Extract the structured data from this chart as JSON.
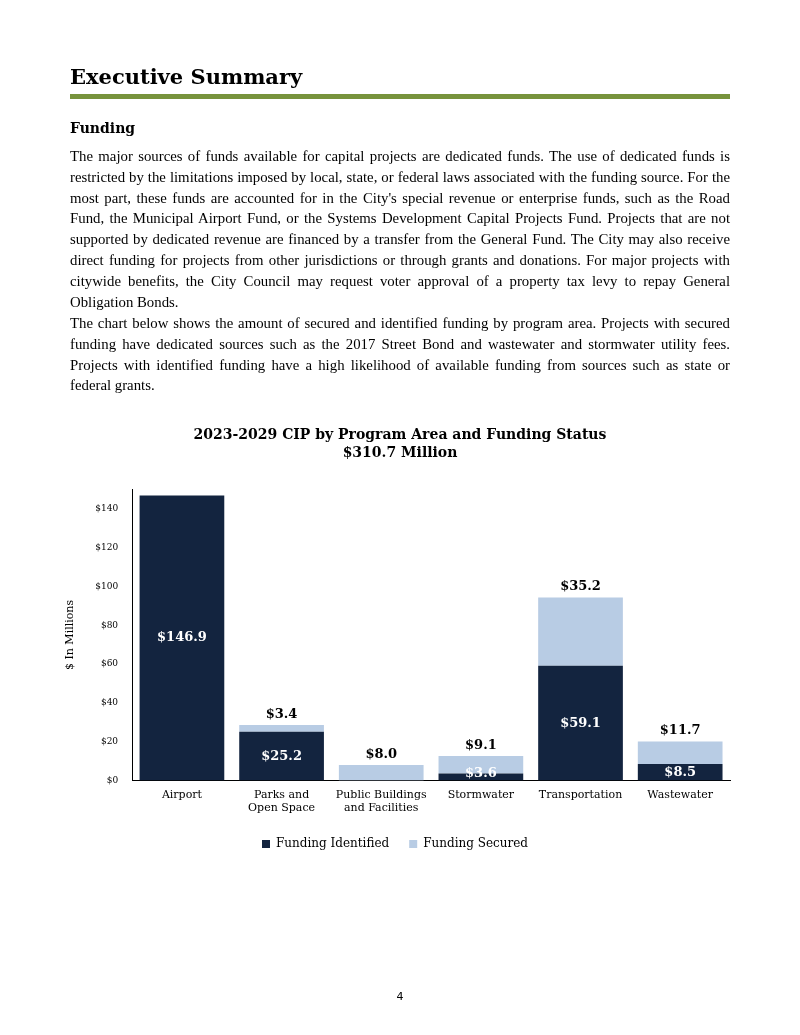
{
  "chart_data": {
    "type": "bar",
    "title": "2023-2029  CIP by Program Area and Funding Status",
    "subtitle": "$310.7 Million",
    "ylabel": "$ In Millions",
    "categories": [
      "Airport",
      "Parks and Open Space",
      "Public Buildings and Facilities",
      "Stormwater",
      "Transportation",
      "Wastewater"
    ],
    "series": [
      {
        "name": "Funding Identified",
        "color": "#13243f",
        "values": [
          146.9,
          25.2,
          null,
          3.6,
          59.1,
          8.5
        ],
        "value_labels": [
          "$146.9",
          "$25.2",
          null,
          "$3.6",
          "$59.1",
          "$8.5"
        ]
      },
      {
        "name": "Funding Secured",
        "color": "#b8cce4",
        "values": [
          null,
          3.4,
          8.0,
          9.1,
          35.2,
          11.7
        ],
        "value_labels": [
          null,
          "$3.4",
          "$8.0",
          "$9.1",
          "$35.2",
          "$11.7"
        ]
      }
    ],
    "stacked": true,
    "grid": false,
    "legend": "bottom",
    "ylim": [
      0,
      150
    ],
    "yticks": [
      {
        "value": 0,
        "label": "$0"
      },
      {
        "value": 20,
        "label": "$20"
      },
      {
        "value": 40,
        "label": "$40"
      },
      {
        "value": 60,
        "label": "$60"
      },
      {
        "value": 80,
        "label": "$80"
      },
      {
        "value": 100,
        "label": "$100"
      },
      {
        "value": 120,
        "label": "$120"
      },
      {
        "value": 140,
        "label": "$140"
      }
    ],
    "annotations": [
      "Executive Summary",
      "Funding",
      "The major sources of funds available for capital projects are dedicated funds. The use of dedicated funds is restricted by the limitations imposed by local, state, or federal laws associated with the funding source. For the most part, these funds are accounted for in the City's special revenue or enterprise funds, such as the Road Fund, the Municipal Airport Fund, or the Systems Development Capital Projects Fund. Projects that are not supported by dedicated revenue are financed by a transfer from the General Fund. The City may also receive direct funding for projects from other jurisdictions or through grants and donations. For major projects with citywide benefits, the City Council may request voter approval of a property tax levy to repay General Obligation Bonds.",
      "The chart below shows the amount of secured and identified funding by program area. Projects with secured funding have dedicated sources such as the 2017 Street Bond and wastewater and stormwater utility fees. Projects with identified funding have a high likelihood of available funding from sources such as state or federal grants.",
      "4"
    ]
  }
}
